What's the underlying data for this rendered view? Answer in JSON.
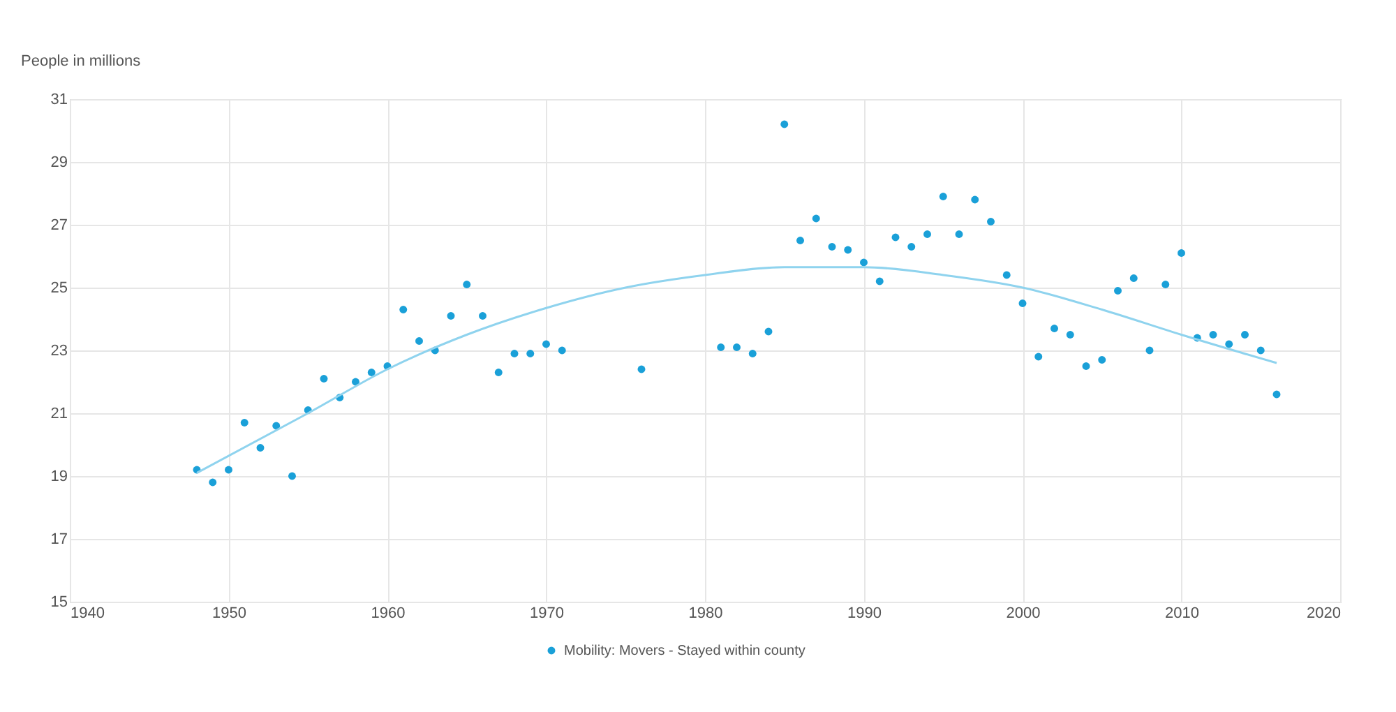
{
  "chart_data": {
    "type": "scatter",
    "ylabel": "People in millions",
    "xlim": [
      1940,
      2020
    ],
    "xticks": [
      1940,
      1950,
      1960,
      1970,
      1980,
      1990,
      2000,
      2010,
      2020
    ],
    "ylim": [
      15,
      31
    ],
    "yticks": [
      15,
      17,
      19,
      21,
      23,
      25,
      27,
      29,
      31
    ],
    "grid": true,
    "legend": "bottom",
    "marker": "circle",
    "series": [
      {
        "name": "Mobility: Movers - Stayed within county",
        "color": "#1aa0d8",
        "x": [
          1948,
          1949,
          1950,
          1951,
          1952,
          1953,
          1954,
          1955,
          1956,
          1957,
          1958,
          1959,
          1960,
          1961,
          1962,
          1963,
          1964,
          1965,
          1966,
          1967,
          1968,
          1969,
          1970,
          1971,
          1976,
          1981,
          1982,
          1983,
          1984,
          1985,
          1986,
          1987,
          1988,
          1989,
          1990,
          1991,
          1992,
          1993,
          1994,
          1995,
          1996,
          1997,
          1998,
          1999,
          2000,
          2001,
          2002,
          2003,
          2004,
          2005,
          2006,
          2007,
          2008,
          2009,
          2010,
          2011,
          2012,
          2013,
          2014,
          2015,
          2016
        ],
        "values": [
          19.2,
          18.8,
          19.2,
          20.7,
          19.9,
          20.6,
          19.0,
          21.1,
          22.1,
          21.5,
          22.0,
          22.3,
          22.5,
          24.3,
          23.3,
          23.0,
          24.1,
          25.1,
          24.1,
          22.3,
          22.9,
          22.9,
          23.2,
          23.0,
          22.4,
          23.1,
          23.1,
          22.9,
          23.6,
          30.2,
          26.5,
          27.2,
          26.3,
          26.2,
          25.8,
          25.2,
          26.6,
          26.3,
          26.7,
          27.9,
          26.7,
          27.8,
          27.1,
          25.4,
          24.5,
          22.8,
          23.7,
          23.5,
          22.5,
          22.7,
          24.9,
          25.3,
          23.0,
          25.1,
          26.1,
          23.4,
          23.5,
          23.2,
          23.5,
          23.0,
          21.6
        ]
      },
      {
        "color": "#8fd3ee",
        "type": "line",
        "marker": "none",
        "x": [
          1948,
          1955,
          1960,
          1965,
          1970,
          1975,
          1980,
          1985,
          1990,
          1995,
          2000,
          2005,
          2010,
          2016
        ],
        "values": [
          19.1,
          21.0,
          22.4,
          23.5,
          24.35,
          25.0,
          25.4,
          25.65,
          25.65,
          25.4,
          25.0,
          24.3,
          23.5,
          22.6
        ]
      }
    ]
  }
}
